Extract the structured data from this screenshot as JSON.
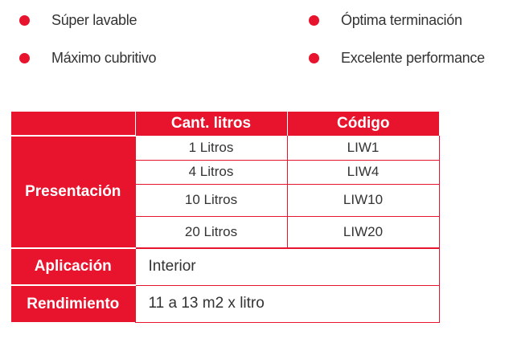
{
  "features": [
    {
      "label": "Súper lavable"
    },
    {
      "label": "Máximo cubritivo"
    },
    {
      "label": "Óptima terminación"
    },
    {
      "label": "Excelente performance"
    }
  ],
  "table": {
    "headers": [
      "Cant. litros",
      "Código"
    ],
    "presentation_label": "Presentación",
    "presentation_rows": [
      {
        "liters": "1 Litros",
        "code": "LIW1"
      },
      {
        "liters": "4 Litros",
        "code": "LIW4"
      },
      {
        "liters": "10 Litros",
        "code": "LIW10"
      },
      {
        "liters": "20 Litros",
        "code": "LIW20"
      }
    ],
    "application_label": "Aplicación",
    "application_value": "Interior",
    "yield_label": "Rendimiento",
    "yield_value": "11 a 13 m2 x litro"
  },
  "colors": {
    "accent": "#e8132c"
  }
}
